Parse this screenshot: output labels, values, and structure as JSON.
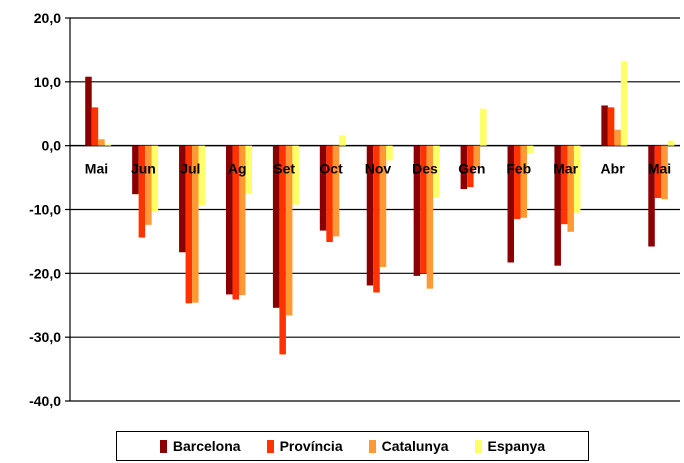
{
  "chart_data": {
    "type": "bar",
    "categories": [
      "Mai",
      "Jun",
      "Jul",
      "Ag",
      "Set",
      "Oct",
      "Nov",
      "Des",
      "Gen",
      "Feb",
      "Mar",
      "Abr",
      "Mai"
    ],
    "series": [
      {
        "name": "Barcelona",
        "color": "#8B0000",
        "values": [
          10.8,
          -7.6,
          -16.7,
          -23.3,
          -25.4,
          -13.3,
          -21.9,
          -20.4,
          -6.8,
          -18.3,
          -18.8,
          6.3,
          -15.8
        ]
      },
      {
        "name": "Província",
        "color": "#FF3300",
        "values": [
          6.0,
          -14.4,
          -24.7,
          -24.1,
          -32.7,
          -15.1,
          -23.0,
          -20.0,
          -6.5,
          -11.5,
          -12.3,
          6.0,
          -8.2
        ]
      },
      {
        "name": "Catalunya",
        "color": "#FF9933",
        "values": [
          1.0,
          -12.4,
          -24.6,
          -23.4,
          -26.6,
          -14.2,
          -19.0,
          -22.4,
          -3.5,
          -11.3,
          -13.5,
          2.5,
          -8.4
        ]
      },
      {
        "name": "Espanya",
        "color": "#FFFF66",
        "values": [
          0.2,
          -10.3,
          -9.3,
          -7.5,
          -9.2,
          1.6,
          -2.3,
          -8.1,
          5.8,
          -1.2,
          -10.5,
          13.2,
          0.8
        ]
      }
    ],
    "ylim": [
      -40,
      20
    ],
    "yticks": [
      20,
      10,
      0,
      -10,
      -20,
      -30,
      -40
    ],
    "ytick_labels": [
      "20,0",
      "10,0",
      "0,0",
      "-10,0",
      "-20,0",
      "-30,0",
      "-40,0"
    ],
    "grid": true,
    "legend_position": "bottom"
  }
}
